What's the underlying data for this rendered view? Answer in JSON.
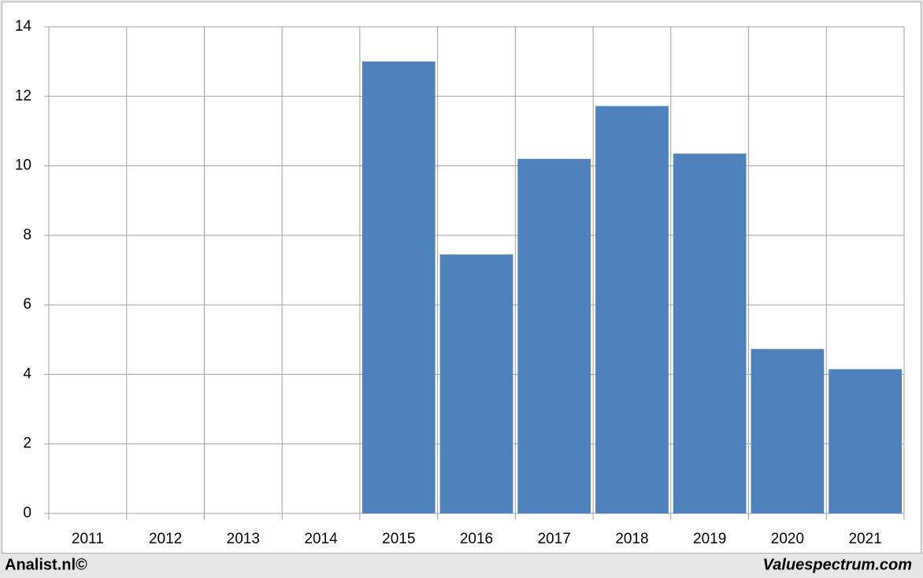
{
  "chart_data": {
    "type": "bar",
    "categories": [
      "2011",
      "2012",
      "2013",
      "2014",
      "2015",
      "2016",
      "2017",
      "2018",
      "2019",
      "2020",
      "2021"
    ],
    "values": [
      null,
      null,
      null,
      null,
      13.0,
      7.45,
      10.2,
      11.72,
      10.35,
      4.73,
      4.15
    ],
    "color": "#4f81bd",
    "ylim": [
      0,
      14
    ],
    "yticks": [
      0,
      2,
      4,
      6,
      8,
      10,
      12,
      14
    ],
    "grid": true,
    "footer_left": "Analist.nl©",
    "footer_right": "Valuespectrum.com"
  }
}
